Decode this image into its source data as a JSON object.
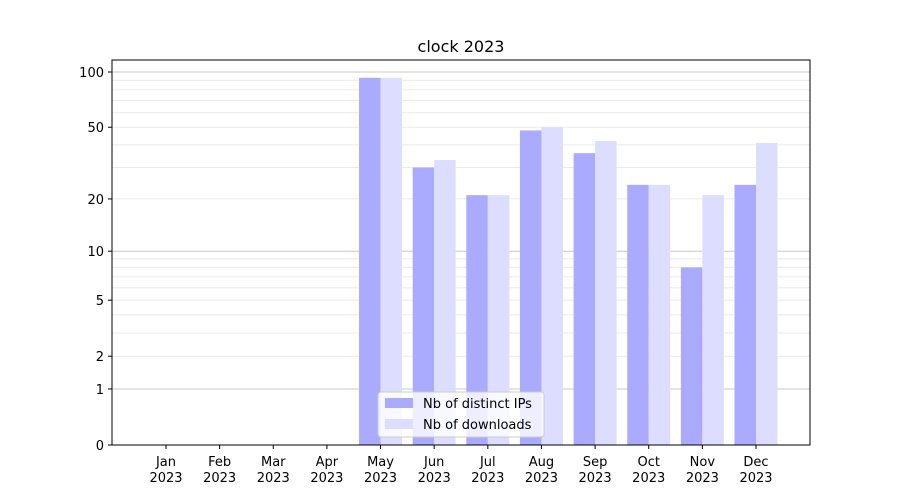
{
  "chart_data": {
    "type": "bar",
    "title": "clock 2023",
    "xlabel": "",
    "ylabel": "",
    "yscale": "log10(1+y)",
    "ylim": [
      0,
      110
    ],
    "yticks": [
      0,
      1,
      2,
      5,
      10,
      20,
      50,
      100
    ],
    "grid": true,
    "legend": "bottom-center",
    "categories": [
      "Jan\n2023",
      "Feb\n2023",
      "Mar\n2023",
      "Apr\n2023",
      "May\n2023",
      "Jun\n2023",
      "Jul\n2023",
      "Aug\n2023",
      "Sep\n2023",
      "Oct\n2023",
      "Nov\n2023",
      "Dec\n2023"
    ],
    "series": [
      {
        "name": "Nb of distinct IPs",
        "color": "#aaaaff",
        "values": [
          0,
          0,
          0,
          0,
          93,
          30,
          21,
          48,
          36,
          24,
          8,
          24
        ]
      },
      {
        "name": "Nb of downloads",
        "color": "#ddddff",
        "values": [
          0,
          0,
          0,
          0,
          93,
          33,
          21,
          50,
          42,
          24,
          21,
          41
        ]
      }
    ]
  }
}
